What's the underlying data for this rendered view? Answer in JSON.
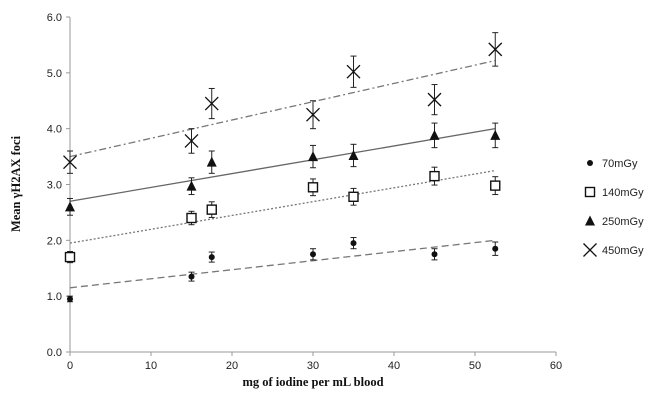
{
  "chart_data": {
    "type": "scatter",
    "xlabel": "mg of iodine per mL blood",
    "ylabel": "Mean γH2AX foci",
    "xlim": [
      0,
      60
    ],
    "ylim": [
      0,
      6
    ],
    "x_ticks": [
      "0",
      "10",
      "20",
      "30",
      "40",
      "50",
      "60"
    ],
    "y_ticks": [
      "0.0",
      "1.0",
      "2.0",
      "3.0",
      "4.0",
      "5.0",
      "6.0"
    ],
    "grid": false,
    "legend_position": "right",
    "series": [
      {
        "name": "70mGy",
        "marker": "dot",
        "color": "#111111",
        "line_style": "long-dash",
        "x": [
          0,
          15,
          17.5,
          30,
          35,
          45,
          52.5
        ],
        "y": [
          0.95,
          1.35,
          1.7,
          1.75,
          1.95,
          1.75,
          1.85
        ],
        "err": [
          0.05,
          0.08,
          0.09,
          0.1,
          0.1,
          0.1,
          0.12
        ],
        "trend": [
          1.15,
          2.0
        ]
      },
      {
        "name": "140mGy",
        "marker": "square",
        "color": "#111111",
        "line_style": "dotted",
        "x": [
          0,
          15,
          17.5,
          30,
          35,
          45,
          52.5
        ],
        "y": [
          1.7,
          2.4,
          2.55,
          2.95,
          2.78,
          3.15,
          2.98
        ],
        "err": [
          0.1,
          0.12,
          0.14,
          0.15,
          0.15,
          0.16,
          0.16
        ],
        "trend": [
          1.95,
          3.25
        ]
      },
      {
        "name": "250mGy",
        "marker": "triangle",
        "color": "#111111",
        "line_style": "solid",
        "x": [
          0,
          15,
          17.5,
          30,
          35,
          45,
          52.5
        ],
        "y": [
          2.6,
          2.97,
          3.4,
          3.5,
          3.52,
          3.88,
          3.88
        ],
        "err": [
          0.15,
          0.15,
          0.2,
          0.2,
          0.2,
          0.22,
          0.22
        ],
        "trend": [
          2.7,
          4.0
        ]
      },
      {
        "name": "450mGy",
        "marker": "cross",
        "color": "#111111",
        "line_style": "dash-dot",
        "x": [
          0,
          15,
          17.5,
          30,
          35,
          45,
          52.5
        ],
        "y": [
          3.4,
          3.78,
          4.45,
          4.25,
          5.02,
          4.52,
          5.42
        ],
        "err": [
          0.2,
          0.22,
          0.27,
          0.25,
          0.28,
          0.27,
          0.3
        ],
        "trend": [
          3.5,
          5.22
        ]
      }
    ]
  }
}
